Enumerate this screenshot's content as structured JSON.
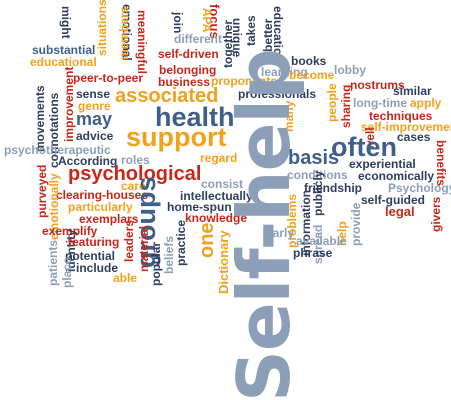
{
  "colors": {
    "slate": "#3f5f8a",
    "grey": "#8c9fb8",
    "orange": "#f0a11e",
    "red": "#c8271b",
    "dark": "#2d3f5c"
  },
  "words": [
    {
      "id": "w-might",
      "text": "might",
      "color": "dark"
    },
    {
      "id": "w-emotional",
      "text": "emotional",
      "color": "dark"
    },
    {
      "id": "w-meaningful",
      "text": "meaningful",
      "color": "red"
    },
    {
      "id": "w-focus",
      "text": "focus",
      "color": "red"
    },
    {
      "id": "w-join",
      "text": "join",
      "color": "dark"
    },
    {
      "id": "w-together",
      "text": "together",
      "color": "dark"
    },
    {
      "id": "w-takes",
      "text": "takes",
      "color": "dark"
    },
    {
      "id": "w-better",
      "text": "better",
      "color": "dark"
    },
    {
      "id": "w-education",
      "text": "education",
      "color": "dark"
    },
    {
      "id": "w-situations",
      "text": "situations",
      "color": "orange"
    },
    {
      "id": "w-members",
      "text": "members",
      "color": "orange"
    },
    {
      "id": "w-apa",
      "text": "APA",
      "color": "orange"
    },
    {
      "id": "w-unique",
      "text": "unique",
      "color": "dark"
    },
    {
      "id": "w-substantial",
      "text": "substantial",
      "color": "slate"
    },
    {
      "id": "w-self-driven",
      "text": "self-driven",
      "color": "red"
    },
    {
      "id": "w-different",
      "text": "different",
      "color": "grey"
    },
    {
      "id": "w-educational",
      "text": "educational",
      "color": "orange"
    },
    {
      "id": "w-books",
      "text": "books",
      "color": "dark"
    },
    {
      "id": "w-learning",
      "text": "learning",
      "color": "grey"
    },
    {
      "id": "w-lobby",
      "text": "lobby",
      "color": "grey"
    },
    {
      "id": "w-peer-to-peer",
      "text": "peer-to-peer",
      "color": "red"
    },
    {
      "id": "w-belonging",
      "text": "belonging",
      "color": "red"
    },
    {
      "id": "w-become",
      "text": "become",
      "color": "orange"
    },
    {
      "id": "w-nostrums",
      "text": "nostrums",
      "color": "red"
    },
    {
      "id": "w-business",
      "text": "business",
      "color": "red"
    },
    {
      "id": "w-proponents",
      "text": "proponents",
      "color": "orange"
    },
    {
      "id": "w-similar",
      "text": "similar",
      "color": "dark"
    },
    {
      "id": "w-movements",
      "text": "movements",
      "color": "dark"
    },
    {
      "id": "w-connotations",
      "text": "connotations",
      "color": "dark"
    },
    {
      "id": "w-improvement",
      "text": "improvement",
      "color": "red"
    },
    {
      "id": "w-sense",
      "text": "sense",
      "color": "dark"
    },
    {
      "id": "w-associated",
      "text": "associated",
      "color": "orange"
    },
    {
      "id": "w-professionals",
      "text": "professionals",
      "color": "dark"
    },
    {
      "id": "w-people",
      "text": "people",
      "color": "orange"
    },
    {
      "id": "w-sharing",
      "text": "sharing",
      "color": "red"
    },
    {
      "id": "w-long-time",
      "text": "long-time",
      "color": "grey"
    },
    {
      "id": "w-apply",
      "text": "apply",
      "color": "orange"
    },
    {
      "id": "w-genre",
      "text": "genre",
      "color": "orange"
    },
    {
      "id": "w-techniques",
      "text": "techniques",
      "color": "red"
    },
    {
      "id": "w-health",
      "text": "health",
      "color": "slate"
    },
    {
      "id": "w-may",
      "text": "may",
      "color": "slate"
    },
    {
      "id": "w-many",
      "text": "many",
      "color": "orange"
    },
    {
      "id": "w-self-improvement",
      "text": "self-improvement",
      "color": "orange"
    },
    {
      "id": "w-advice",
      "text": "advice",
      "color": "dark"
    },
    {
      "id": "w-well",
      "text": "well",
      "color": "red"
    },
    {
      "id": "w-cases",
      "text": "cases",
      "color": "dark"
    },
    {
      "id": "w-psychotherapeutic",
      "text": "psychotherapeutic",
      "color": "grey"
    },
    {
      "id": "w-support",
      "text": "support",
      "color": "orange"
    },
    {
      "id": "w-often",
      "text": "often",
      "color": "slate"
    },
    {
      "id": "w-benefits",
      "text": "benefits",
      "color": "red"
    },
    {
      "id": "w-according",
      "text": "According",
      "color": "dark"
    },
    {
      "id": "w-roles",
      "text": "roles",
      "color": "grey"
    },
    {
      "id": "w-regard",
      "text": "regard",
      "color": "orange"
    },
    {
      "id": "w-basis",
      "text": "basis",
      "color": "slate"
    },
    {
      "id": "w-experiential",
      "text": "experiential",
      "color": "dark"
    },
    {
      "id": "w-psychological",
      "text": "psychological",
      "color": "red"
    },
    {
      "id": "w-conditions",
      "text": "conditions",
      "color": "grey"
    },
    {
      "id": "w-economically",
      "text": "economically",
      "color": "dark"
    },
    {
      "id": "w-care",
      "text": "care",
      "color": "orange"
    },
    {
      "id": "w-consist",
      "text": "consist",
      "color": "grey"
    },
    {
      "id": "w-friendship",
      "text": "friendship",
      "color": "dark"
    },
    {
      "id": "w-psychology",
      "text": "Psychology",
      "color": "grey"
    },
    {
      "id": "w-purveyed",
      "text": "purveyed",
      "color": "red"
    },
    {
      "id": "w-clearing-houses",
      "text": "clearing-houses",
      "color": "red"
    },
    {
      "id": "w-emotionally",
      "text": "emotionally",
      "color": "orange"
    },
    {
      "id": "w-intellectually",
      "text": "intellectually",
      "color": "dark"
    },
    {
      "id": "w-self-guided",
      "text": "self-guided",
      "color": "dark"
    },
    {
      "id": "w-particularly",
      "text": "particularly",
      "color": "orange"
    },
    {
      "id": "w-home-spun",
      "text": "home-spun",
      "color": "dark"
    },
    {
      "id": "w-legal",
      "text": "legal",
      "color": "red"
    },
    {
      "id": "w-exemplars",
      "text": "exemplars",
      "color": "red"
    },
    {
      "id": "w-knowledge",
      "text": "knowledge",
      "color": "red"
    },
    {
      "id": "w-givers",
      "text": "givers",
      "color": "red"
    },
    {
      "id": "w-groups",
      "text": "groups",
      "color": "slate"
    },
    {
      "id": "w-exemplify",
      "text": "exemplify",
      "color": "red"
    },
    {
      "id": "w-identity",
      "text": "identity",
      "color": "dark"
    },
    {
      "id": "w-one",
      "text": "one",
      "color": "orange"
    },
    {
      "id": "w-problems",
      "text": "problems",
      "color": "orange"
    },
    {
      "id": "w-featuring",
      "text": "featuring",
      "color": "red"
    },
    {
      "id": "w-leaders",
      "text": "leaders",
      "color": "red"
    },
    {
      "id": "w-practice",
      "text": "practice",
      "color": "dark"
    },
    {
      "id": "w-early",
      "text": "early",
      "color": "grey"
    },
    {
      "id": "w-information",
      "text": "information",
      "color": "dark"
    },
    {
      "id": "w-publicly",
      "text": "publicly",
      "color": "dark"
    },
    {
      "id": "w-help-small",
      "text": "help",
      "color": "orange"
    },
    {
      "id": "w-provide",
      "text": "provide",
      "color": "grey"
    },
    {
      "id": "w-potential",
      "text": "potential",
      "color": "dark"
    },
    {
      "id": "w-beliefs",
      "text": "beliefs",
      "color": "grey"
    },
    {
      "id": "w-material",
      "text": "material",
      "color": "red"
    },
    {
      "id": "w-dictionary",
      "text": "Dictionary",
      "color": "orange"
    },
    {
      "id": "w-available",
      "text": "available",
      "color": "grey"
    },
    {
      "id": "w-spread",
      "text": "spread",
      "color": "grey"
    },
    {
      "id": "w-include",
      "text": "include",
      "color": "dark"
    },
    {
      "id": "w-popular",
      "text": "popular",
      "color": "dark"
    },
    {
      "id": "w-phrase",
      "text": "phrase",
      "color": "dark"
    },
    {
      "id": "w-patients",
      "text": "patients",
      "color": "grey"
    },
    {
      "id": "w-able",
      "text": "able",
      "color": "orange"
    },
    {
      "id": "w-place",
      "text": "place",
      "color": "grey"
    },
    {
      "id": "w-self-help",
      "text": "Self-help",
      "color": "grey"
    }
  ]
}
